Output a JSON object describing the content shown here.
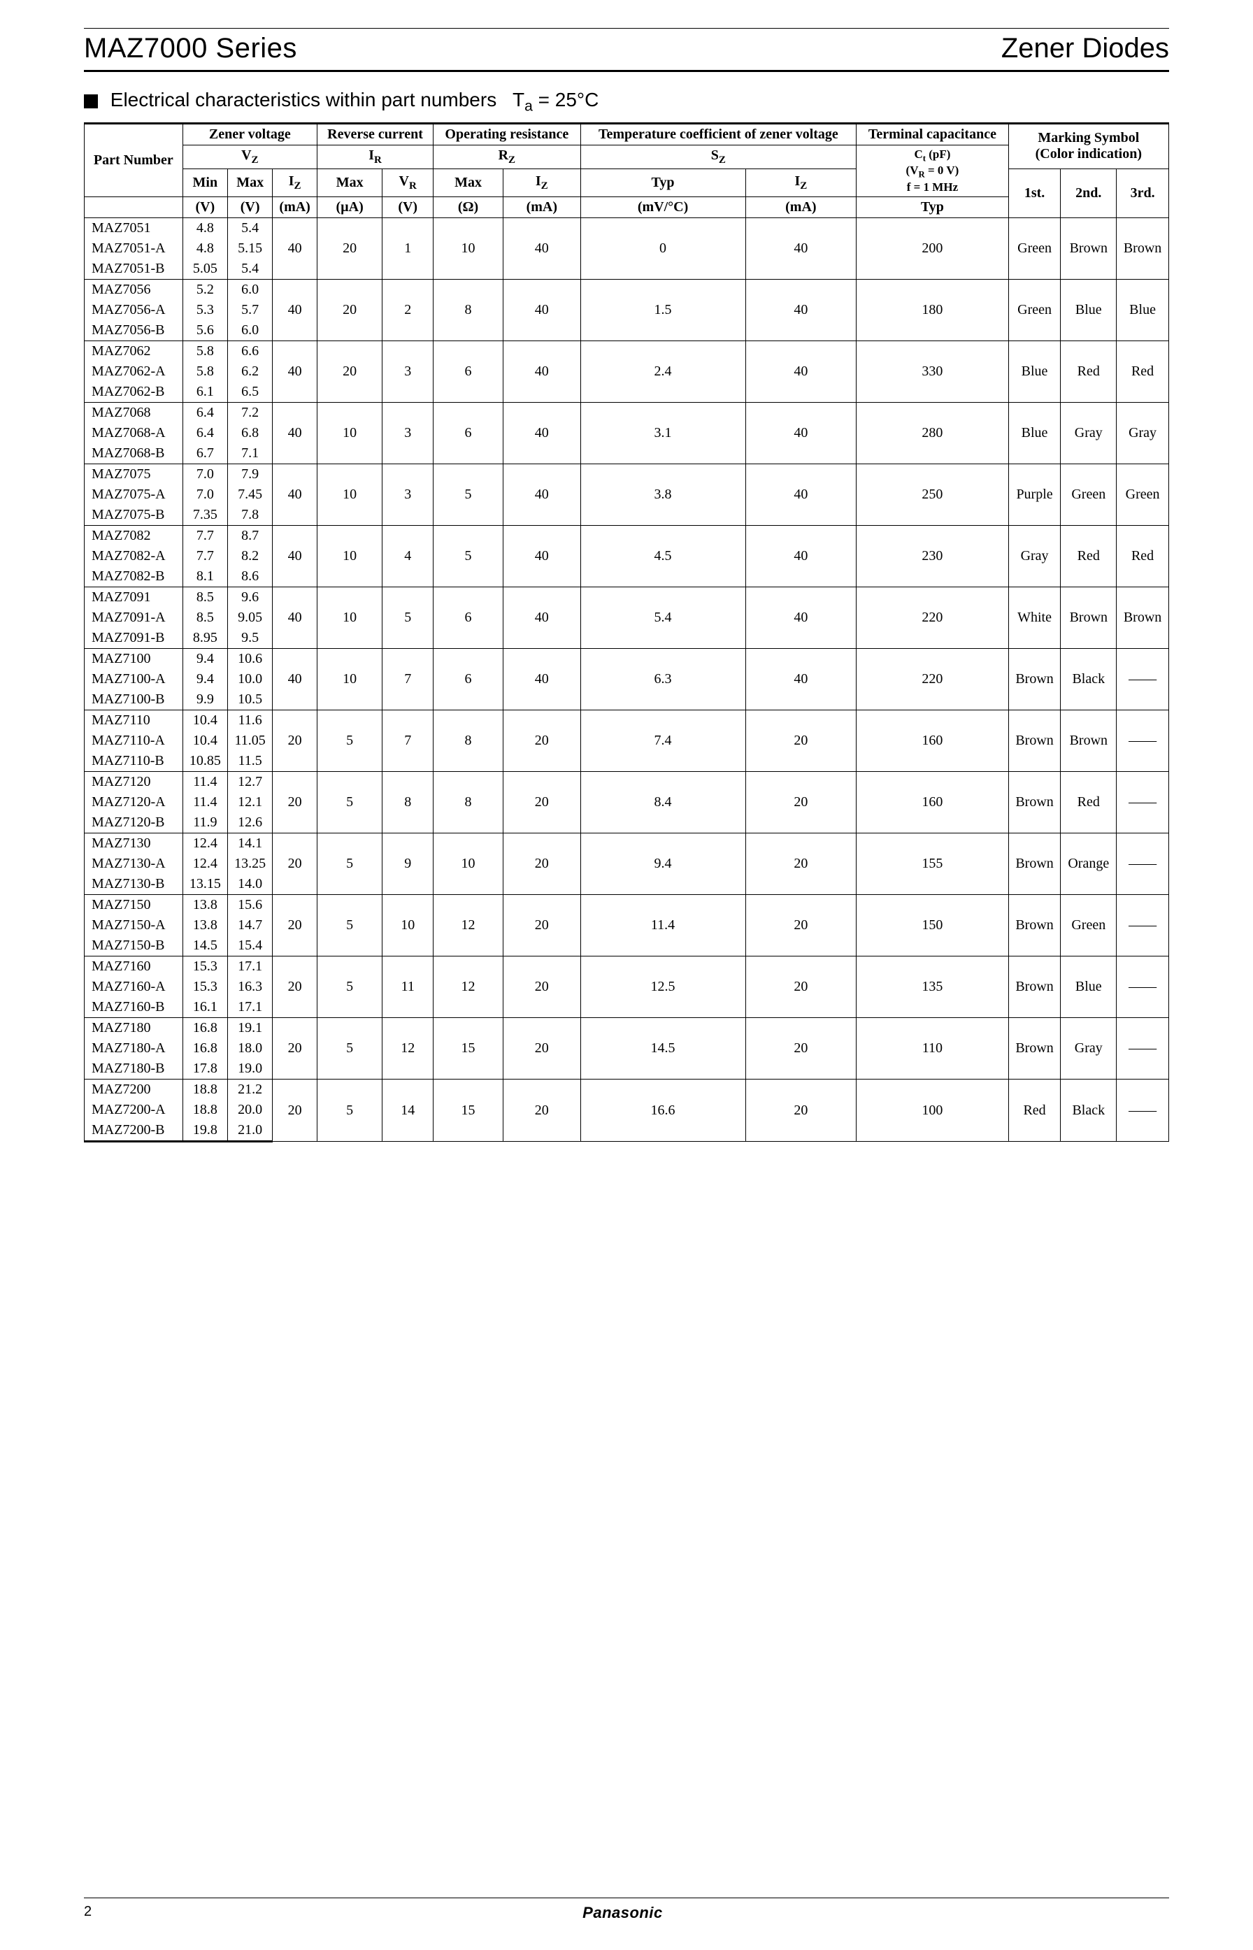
{
  "header": {
    "series": "MAZ7000 Series",
    "category": "Zener Diodes"
  },
  "section": {
    "bullet": "■",
    "title": "Electrical characteristics within part numbers",
    "condition_prefix": "T",
    "condition_sub": "a",
    "condition_suffix": " = 25°C"
  },
  "table_headers": {
    "part_number": "Part Number",
    "zener_voltage": "Zener voltage",
    "reverse_current": "Reverse current",
    "operating_resistance": "Operating resistance",
    "temp_coeff": "Temperature coefficient of zener voltage",
    "terminal_cap": "Terminal capacitance",
    "marking_symbol": "Marking Symbol",
    "color_indication": "(Color indication)",
    "vz": "V",
    "vz_sub": "Z",
    "ir": "I",
    "ir_sub": "R",
    "rz": "R",
    "rz_sub": "Z",
    "sz": "S",
    "sz_sub": "Z",
    "ct": "C",
    "ct_sub": "t",
    "ct_unit": " (pF)",
    "ct_cond1_pre": "(V",
    "ct_cond1_sub": "R",
    "ct_cond1_post": " = 0 V)",
    "ct_cond2": "f = 1 MHz",
    "min": "Min",
    "max": "Max",
    "typ": "Typ",
    "iz": "I",
    "iz_sub": "Z",
    "vr": "V",
    "vr_sub": "R",
    "unit_v": "(V)",
    "unit_ma": "(mA)",
    "unit_ua": "(µA)",
    "unit_ohm": "(Ω)",
    "unit_mvc": "(mV/°C)",
    "c1": "1st.",
    "c2": "2nd.",
    "c3": "3rd."
  },
  "groups": [
    {
      "rows": [
        {
          "pn": "MAZ7051",
          "min": "4.8",
          "max": "5.4"
        },
        {
          "pn": "MAZ7051-A",
          "min": "4.8",
          "max": "5.15"
        },
        {
          "pn": "MAZ7051-B",
          "min": "5.05",
          "max": "5.4"
        }
      ],
      "iz": "40",
      "ir_max": "20",
      "vr": "1",
      "rz_max": "10",
      "rz_iz": "40",
      "sz_typ": "0",
      "sz_iz": "40",
      "ct": "200",
      "m1": "Green",
      "m2": "Brown",
      "m3": "Brown"
    },
    {
      "rows": [
        {
          "pn": "MAZ7056",
          "min": "5.2",
          "max": "6.0"
        },
        {
          "pn": "MAZ7056-A",
          "min": "5.3",
          "max": "5.7"
        },
        {
          "pn": "MAZ7056-B",
          "min": "5.6",
          "max": "6.0"
        }
      ],
      "iz": "40",
      "ir_max": "20",
      "vr": "2",
      "rz_max": "8",
      "rz_iz": "40",
      "sz_typ": "1.5",
      "sz_iz": "40",
      "ct": "180",
      "m1": "Green",
      "m2": "Blue",
      "m3": "Blue"
    },
    {
      "rows": [
        {
          "pn": "MAZ7062",
          "min": "5.8",
          "max": "6.6"
        },
        {
          "pn": "MAZ7062-A",
          "min": "5.8",
          "max": "6.2"
        },
        {
          "pn": "MAZ7062-B",
          "min": "6.1",
          "max": "6.5"
        }
      ],
      "iz": "40",
      "ir_max": "20",
      "vr": "3",
      "rz_max": "6",
      "rz_iz": "40",
      "sz_typ": "2.4",
      "sz_iz": "40",
      "ct": "330",
      "m1": "Blue",
      "m2": "Red",
      "m3": "Red"
    },
    {
      "rows": [
        {
          "pn": "MAZ7068",
          "min": "6.4",
          "max": "7.2"
        },
        {
          "pn": "MAZ7068-A",
          "min": "6.4",
          "max": "6.8"
        },
        {
          "pn": "MAZ7068-B",
          "min": "6.7",
          "max": "7.1"
        }
      ],
      "iz": "40",
      "ir_max": "10",
      "vr": "3",
      "rz_max": "6",
      "rz_iz": "40",
      "sz_typ": "3.1",
      "sz_iz": "40",
      "ct": "280",
      "m1": "Blue",
      "m2": "Gray",
      "m3": "Gray"
    },
    {
      "rows": [
        {
          "pn": "MAZ7075",
          "min": "7.0",
          "max": "7.9"
        },
        {
          "pn": "MAZ7075-A",
          "min": "7.0",
          "max": "7.45"
        },
        {
          "pn": "MAZ7075-B",
          "min": "7.35",
          "max": "7.8"
        }
      ],
      "iz": "40",
      "ir_max": "10",
      "vr": "3",
      "rz_max": "5",
      "rz_iz": "40",
      "sz_typ": "3.8",
      "sz_iz": "40",
      "ct": "250",
      "m1": "Purple",
      "m2": "Green",
      "m3": "Green"
    },
    {
      "rows": [
        {
          "pn": "MAZ7082",
          "min": "7.7",
          "max": "8.7"
        },
        {
          "pn": "MAZ7082-A",
          "min": "7.7",
          "max": "8.2"
        },
        {
          "pn": "MAZ7082-B",
          "min": "8.1",
          "max": "8.6"
        }
      ],
      "iz": "40",
      "ir_max": "10",
      "vr": "4",
      "rz_max": "5",
      "rz_iz": "40",
      "sz_typ": "4.5",
      "sz_iz": "40",
      "ct": "230",
      "m1": "Gray",
      "m2": "Red",
      "m3": "Red"
    },
    {
      "rows": [
        {
          "pn": "MAZ7091",
          "min": "8.5",
          "max": "9.6"
        },
        {
          "pn": "MAZ7091-A",
          "min": "8.5",
          "max": "9.05"
        },
        {
          "pn": "MAZ7091-B",
          "min": "8.95",
          "max": "9.5"
        }
      ],
      "iz": "40",
      "ir_max": "10",
      "vr": "5",
      "rz_max": "6",
      "rz_iz": "40",
      "sz_typ": "5.4",
      "sz_iz": "40",
      "ct": "220",
      "m1": "White",
      "m2": "Brown",
      "m3": "Brown"
    },
    {
      "rows": [
        {
          "pn": "MAZ7100",
          "min": "9.4",
          "max": "10.6"
        },
        {
          "pn": "MAZ7100-A",
          "min": "9.4",
          "max": "10.0"
        },
        {
          "pn": "MAZ7100-B",
          "min": "9.9",
          "max": "10.5"
        }
      ],
      "iz": "40",
      "ir_max": "10",
      "vr": "7",
      "rz_max": "6",
      "rz_iz": "40",
      "sz_typ": "6.3",
      "sz_iz": "40",
      "ct": "220",
      "m1": "Brown",
      "m2": "Black",
      "m3": "——"
    },
    {
      "rows": [
        {
          "pn": "MAZ7110",
          "min": "10.4",
          "max": "11.6"
        },
        {
          "pn": "MAZ7110-A",
          "min": "10.4",
          "max": "11.05"
        },
        {
          "pn": "MAZ7110-B",
          "min": "10.85",
          "max": "11.5"
        }
      ],
      "iz": "20",
      "ir_max": "5",
      "vr": "7",
      "rz_max": "8",
      "rz_iz": "20",
      "sz_typ": "7.4",
      "sz_iz": "20",
      "ct": "160",
      "m1": "Brown",
      "m2": "Brown",
      "m3": "——"
    },
    {
      "rows": [
        {
          "pn": "MAZ7120",
          "min": "11.4",
          "max": "12.7"
        },
        {
          "pn": "MAZ7120-A",
          "min": "11.4",
          "max": "12.1"
        },
        {
          "pn": "MAZ7120-B",
          "min": "11.9",
          "max": "12.6"
        }
      ],
      "iz": "20",
      "ir_max": "5",
      "vr": "8",
      "rz_max": "8",
      "rz_iz": "20",
      "sz_typ": "8.4",
      "sz_iz": "20",
      "ct": "160",
      "m1": "Brown",
      "m2": "Red",
      "m3": "——"
    },
    {
      "rows": [
        {
          "pn": "MAZ7130",
          "min": "12.4",
          "max": "14.1"
        },
        {
          "pn": "MAZ7130-A",
          "min": "12.4",
          "max": "13.25"
        },
        {
          "pn": "MAZ7130-B",
          "min": "13.15",
          "max": "14.0"
        }
      ],
      "iz": "20",
      "ir_max": "5",
      "vr": "9",
      "rz_max": "10",
      "rz_iz": "20",
      "sz_typ": "9.4",
      "sz_iz": "20",
      "ct": "155",
      "m1": "Brown",
      "m2": "Orange",
      "m3": "——"
    },
    {
      "rows": [
        {
          "pn": "MAZ7150",
          "min": "13.8",
          "max": "15.6"
        },
        {
          "pn": "MAZ7150-A",
          "min": "13.8",
          "max": "14.7"
        },
        {
          "pn": "MAZ7150-B",
          "min": "14.5",
          "max": "15.4"
        }
      ],
      "iz": "20",
      "ir_max": "5",
      "vr": "10",
      "rz_max": "12",
      "rz_iz": "20",
      "sz_typ": "11.4",
      "sz_iz": "20",
      "ct": "150",
      "m1": "Brown",
      "m2": "Green",
      "m3": "——"
    },
    {
      "rows": [
        {
          "pn": "MAZ7160",
          "min": "15.3",
          "max": "17.1"
        },
        {
          "pn": "MAZ7160-A",
          "min": "15.3",
          "max": "16.3"
        },
        {
          "pn": "MAZ7160-B",
          "min": "16.1",
          "max": "17.1"
        }
      ],
      "iz": "20",
      "ir_max": "5",
      "vr": "11",
      "rz_max": "12",
      "rz_iz": "20",
      "sz_typ": "12.5",
      "sz_iz": "20",
      "ct": "135",
      "m1": "Brown",
      "m2": "Blue",
      "m3": "——"
    },
    {
      "rows": [
        {
          "pn": "MAZ7180",
          "min": "16.8",
          "max": "19.1"
        },
        {
          "pn": "MAZ7180-A",
          "min": "16.8",
          "max": "18.0"
        },
        {
          "pn": "MAZ7180-B",
          "min": "17.8",
          "max": "19.0"
        }
      ],
      "iz": "20",
      "ir_max": "5",
      "vr": "12",
      "rz_max": "15",
      "rz_iz": "20",
      "sz_typ": "14.5",
      "sz_iz": "20",
      "ct": "110",
      "m1": "Brown",
      "m2": "Gray",
      "m3": "——"
    },
    {
      "rows": [
        {
          "pn": "MAZ7200",
          "min": "18.8",
          "max": "21.2"
        },
        {
          "pn": "MAZ7200-A",
          "min": "18.8",
          "max": "20.0"
        },
        {
          "pn": "MAZ7200-B",
          "min": "19.8",
          "max": "21.0"
        }
      ],
      "iz": "20",
      "ir_max": "5",
      "vr": "14",
      "rz_max": "15",
      "rz_iz": "20",
      "sz_typ": "16.6",
      "sz_iz": "20",
      "ct": "100",
      "m1": "Red",
      "m2": "Black",
      "m3": "——"
    }
  ],
  "footer": {
    "page": "2",
    "brand": "Panasonic"
  }
}
